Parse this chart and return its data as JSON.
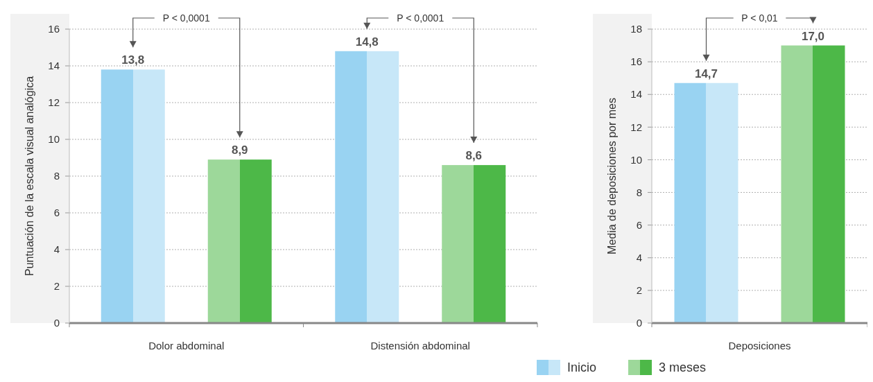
{
  "chart_data": [
    {
      "type": "bar",
      "categories": [
        "Dolor abdominal",
        "Distensión abdominal"
      ],
      "ylabel": "Puntuación de la escala visual analógica",
      "ylim": [
        0,
        16
      ],
      "yticks": [
        0,
        2,
        4,
        6,
        8,
        10,
        12,
        14,
        16
      ],
      "grid": "y",
      "series": [
        {
          "color": "#99d3f2",
          "values": [
            13.8,
            14.8
          ],
          "value_labels": [
            "13,8",
            "14,8"
          ]
        },
        {
          "color": "#4db848",
          "values": [
            8.9,
            8.6
          ],
          "value_labels": [
            "8,9",
            "8,6"
          ]
        }
      ],
      "annotations": [
        "P < 0,0001",
        "P < 0,0001"
      ]
    },
    {
      "type": "bar",
      "categories": [
        "Deposiciones"
      ],
      "ylabel": "Media de deposiciones por mes",
      "ylim": [
        0,
        18
      ],
      "yticks": [
        0,
        2,
        4,
        6,
        8,
        10,
        12,
        14,
        16,
        18
      ],
      "grid": "y",
      "legend": "bottom",
      "series": [
        {
          "name": "Inicio",
          "color": "#99d3f2",
          "values": [
            14.7
          ],
          "value_labels": [
            "14,7"
          ]
        },
        {
          "name": "3 meses",
          "color": "#4db848",
          "values": [
            17.0
          ],
          "value_labels": [
            "17,0"
          ]
        }
      ],
      "annotations": [
        "P < 0,01"
      ]
    }
  ]
}
